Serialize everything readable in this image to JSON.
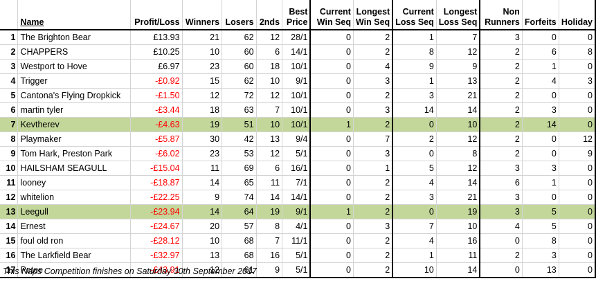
{
  "headers": {
    "name": "Name",
    "profit_loss": "Profit/Loss",
    "winners": "Winners",
    "losers": "Losers",
    "seconds": "2nds",
    "best_price": [
      "Best",
      "Price"
    ],
    "current_win_seq": [
      "Current",
      "Win Seq"
    ],
    "longest_win_seq": [
      "Longest",
      "Win Seq"
    ],
    "current_loss_seq": [
      "Current",
      "Loss Seq"
    ],
    "longest_loss_seq": [
      "Longest",
      "Loss Seq"
    ],
    "non_runners": [
      "Non",
      "Runners"
    ],
    "forfeits": "Forfeits",
    "holiday": "Holiday"
  },
  "rows": [
    {
      "pos": "1",
      "name": "The Brighton Bear",
      "pl": "£13.93",
      "neg": false,
      "w": "21",
      "l": "62",
      "s": "12",
      "bp": "28/1",
      "cws": "0",
      "lws": "2",
      "cls": "1",
      "lls": "7",
      "nr": "3",
      "f": "0",
      "h": "0",
      "hl": false
    },
    {
      "pos": "2",
      "name": "CHAPPERS",
      "pl": "£10.25",
      "neg": false,
      "w": "10",
      "l": "60",
      "s": "6",
      "bp": "14/1",
      "cws": "0",
      "lws": "2",
      "cls": "8",
      "lls": "12",
      "nr": "2",
      "f": "6",
      "h": "8",
      "hl": false
    },
    {
      "pos": "3",
      "name": "Westport to Hove",
      "pl": "£6.97",
      "neg": false,
      "w": "23",
      "l": "60",
      "s": "18",
      "bp": "10/1",
      "cws": "0",
      "lws": "4",
      "cls": "9",
      "lls": "9",
      "nr": "2",
      "f": "1",
      "h": "0",
      "hl": false
    },
    {
      "pos": "4",
      "name": "Trigger",
      "pl": "-£0.92",
      "neg": true,
      "w": "15",
      "l": "62",
      "s": "10",
      "bp": "9/1",
      "cws": "0",
      "lws": "3",
      "cls": "1",
      "lls": "13",
      "nr": "2",
      "f": "4",
      "h": "3",
      "hl": false
    },
    {
      "pos": "5",
      "name": "Cantona's Flying Dropkick",
      "pl": "-£1.50",
      "neg": true,
      "w": "12",
      "l": "72",
      "s": "12",
      "bp": "10/1",
      "cws": "0",
      "lws": "2",
      "cls": "3",
      "lls": "21",
      "nr": "2",
      "f": "0",
      "h": "0",
      "hl": false
    },
    {
      "pos": "6",
      "name": "martin tyler",
      "pl": "-£3.44",
      "neg": true,
      "w": "18",
      "l": "63",
      "s": "7",
      "bp": "10/1",
      "cws": "0",
      "lws": "3",
      "cls": "14",
      "lls": "14",
      "nr": "2",
      "f": "3",
      "h": "0",
      "hl": false
    },
    {
      "pos": "7",
      "name": "Kevtherev",
      "pl": "-£4.63",
      "neg": true,
      "w": "19",
      "l": "51",
      "s": "10",
      "bp": "10/1",
      "cws": "1",
      "lws": "2",
      "cls": "0",
      "lls": "10",
      "nr": "2",
      "f": "14",
      "h": "0",
      "hl": true
    },
    {
      "pos": "8",
      "name": "Playmaker",
      "pl": "-£5.87",
      "neg": true,
      "w": "30",
      "l": "42",
      "s": "13",
      "bp": "9/4",
      "cws": "0",
      "lws": "7",
      "cls": "2",
      "lls": "12",
      "nr": "2",
      "f": "0",
      "h": "12",
      "hl": false
    },
    {
      "pos": "9",
      "name": "Tom Hark, Preston Park",
      "pl": "-£6.02",
      "neg": true,
      "w": "23",
      "l": "53",
      "s": "12",
      "bp": "5/1",
      "cws": "0",
      "lws": "3",
      "cls": "0",
      "lls": "8",
      "nr": "2",
      "f": "0",
      "h": "9",
      "hl": false
    },
    {
      "pos": "10",
      "name": "HAILSHAM SEAGULL",
      "pl": "-£15.04",
      "neg": true,
      "w": "11",
      "l": "69",
      "s": "6",
      "bp": "16/1",
      "cws": "0",
      "lws": "1",
      "cls": "5",
      "lls": "12",
      "nr": "3",
      "f": "3",
      "h": "0",
      "hl": false
    },
    {
      "pos": "11",
      "name": "looney",
      "pl": "-£18.87",
      "neg": true,
      "w": "14",
      "l": "65",
      "s": "11",
      "bp": "7/1",
      "cws": "0",
      "lws": "2",
      "cls": "4",
      "lls": "14",
      "nr": "6",
      "f": "1",
      "h": "0",
      "hl": false
    },
    {
      "pos": "12",
      "name": "whitelion",
      "pl": "-£22.25",
      "neg": true,
      "w": "9",
      "l": "74",
      "s": "14",
      "bp": "14/1",
      "cws": "0",
      "lws": "2",
      "cls": "3",
      "lls": "21",
      "nr": "3",
      "f": "0",
      "h": "0",
      "hl": false
    },
    {
      "pos": "13",
      "name": "Leegull",
      "pl": "-£23.94",
      "neg": true,
      "w": "14",
      "l": "64",
      "s": "19",
      "bp": "9/1",
      "cws": "1",
      "lws": "2",
      "cls": "0",
      "lls": "19",
      "nr": "3",
      "f": "5",
      "h": "0",
      "hl": true
    },
    {
      "pos": "14",
      "name": "Ernest",
      "pl": "-£24.67",
      "neg": true,
      "w": "20",
      "l": "57",
      "s": "8",
      "bp": "4/1",
      "cws": "0",
      "lws": "3",
      "cls": "7",
      "lls": "10",
      "nr": "4",
      "f": "5",
      "h": "0",
      "hl": false
    },
    {
      "pos": "15",
      "name": "foul old ron",
      "pl": "-£28.12",
      "neg": true,
      "w": "10",
      "l": "68",
      "s": "7",
      "bp": "11/1",
      "cws": "0",
      "lws": "2",
      "cls": "4",
      "lls": "16",
      "nr": "0",
      "f": "8",
      "h": "0",
      "hl": false
    },
    {
      "pos": "16",
      "name": "The Larkfield Bear",
      "pl": "-£32.97",
      "neg": true,
      "w": "13",
      "l": "68",
      "s": "16",
      "bp": "5/1",
      "cws": "0",
      "lws": "2",
      "cls": "1",
      "lls": "11",
      "nr": "2",
      "f": "3",
      "h": "0",
      "hl": false
    },
    {
      "pos": "17",
      "name": "Petee",
      "pl": "-£43.91",
      "neg": true,
      "w": "12",
      "l": "61",
      "s": "9",
      "bp": "5/1",
      "cws": "0",
      "lws": "2",
      "cls": "10",
      "lls": "14",
      "nr": "0",
      "f": "13",
      "h": "0",
      "hl": false
    }
  ],
  "footer": "This Naps Competition finishes on Saturday 30th September 2017",
  "colors": {
    "highlight_row": "#c4d79b",
    "negative": "#ff0000"
  }
}
